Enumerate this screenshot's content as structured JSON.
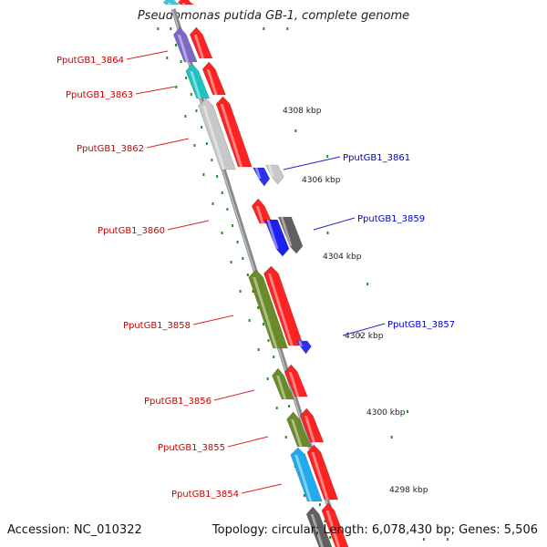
{
  "title": "Pseudomonas putida GB-1, complete genome",
  "footer": {
    "accession": "Accession: NC_010322",
    "summary": "Topology: circular; Length: 6,078,430 bp; Genes: 5,506"
  },
  "colors": {
    "forward_label": "#cc0000",
    "reverse_label": "#0000cc",
    "backbone": "#8a8a8a",
    "tick": "#2a8a2a",
    "leader_forward": "#dd2222",
    "leader_reverse": "#2222dd"
  },
  "ticks": [
    {
      "label": "4308 kbp",
      "kbp": 4308
    },
    {
      "label": "4306 kbp",
      "kbp": 4306
    },
    {
      "label": "4304 kbp",
      "kbp": 4304
    },
    {
      "label": "4302 kbp",
      "kbp": 4302
    },
    {
      "label": "4300 kbp",
      "kbp": 4300
    },
    {
      "label": "4298 kbp",
      "kbp": 4298
    }
  ],
  "labeled_genes": [
    {
      "id": "PputGB1_3864",
      "strand": "forward"
    },
    {
      "id": "PputGB1_3863",
      "strand": "forward"
    },
    {
      "id": "PputGB1_3862",
      "strand": "forward"
    },
    {
      "id": "PputGB1_3860",
      "strand": "forward"
    },
    {
      "id": "PputGB1_3858",
      "strand": "forward"
    },
    {
      "id": "PputGB1_3856",
      "strand": "forward"
    },
    {
      "id": "PputGB1_3855",
      "strand": "forward"
    },
    {
      "id": "PputGB1_3854",
      "strand": "forward"
    },
    {
      "id": "PputGB1_3861",
      "strand": "reverse"
    },
    {
      "id": "PputGB1_3859",
      "strand": "reverse"
    },
    {
      "id": "PputGB1_3857",
      "strand": "reverse"
    }
  ]
}
